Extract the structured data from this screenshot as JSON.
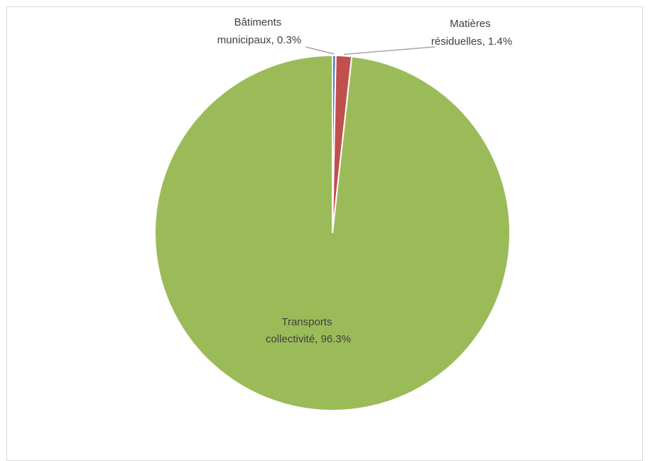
{
  "chart_data": {
    "type": "pie",
    "title": "",
    "slices": [
      {
        "category": "Transports collectivité",
        "value": 96.3,
        "label_line1": "Transports",
        "label_line2": "collectivité, 96.3%",
        "color": "#9bbb59"
      },
      {
        "category": "Bâtiments municipaux",
        "value": 0.3,
        "label_line1": "Bâtiments",
        "label_line2": "municipaux, 0.3%",
        "color": "#4f81bd"
      },
      {
        "category": "Matières résiduelles",
        "value": 1.4,
        "label_line1": "Matières",
        "label_line2": "résiduelles, 1.4%",
        "color": "#c0504d"
      }
    ],
    "legend": "none",
    "label_style": "category, percentage"
  }
}
